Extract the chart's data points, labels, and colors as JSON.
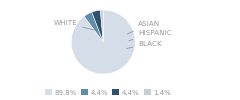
{
  "labels": [
    "WHITE",
    "ASIAN",
    "HISPANIC",
    "BLACK"
  ],
  "values": [
    89.8,
    4.4,
    4.4,
    1.4
  ],
  "colors": [
    "#d4dde8",
    "#5f8ca8",
    "#2d526e",
    "#c5cdd8"
  ],
  "legend_labels": [
    "89.8%",
    "4.4%",
    "4.4%",
    "1.4%"
  ],
  "label_color": "#999999",
  "startangle": 90,
  "figsize": [
    2.4,
    1.0
  ],
  "dpi": 100
}
